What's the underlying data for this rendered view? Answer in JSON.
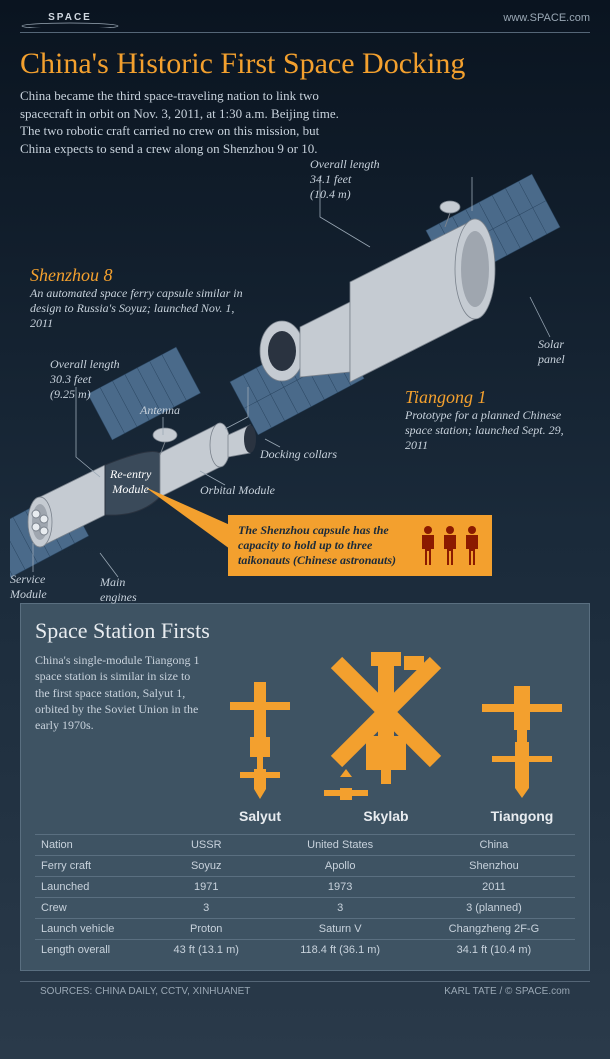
{
  "header": {
    "url": "www.SPACE.com",
    "logo_text": "SPACE"
  },
  "title": "China's Historic First Space Docking",
  "lead": "China became the third space-traveling nation to link two spacecraft in orbit on Nov. 3, 2011, at 1:30 a.m. Beijing time. The two robotic craft carried no crew on this mission, but China expects to send a crew along on Shenzhou 9 or 10.",
  "shenzhou": {
    "name": "Shenzhou 8",
    "desc": "An automated space ferry capsule similar in design to Russia's Soyuz; launched Nov. 1, 2011"
  },
  "tiangong": {
    "name": "Tiangong 1",
    "desc": "Prototype for a planned Chinese space station; launched Sept. 29, 2011"
  },
  "labels": {
    "overall_tg": "Overall length\n34.1 feet\n(10.4 m)",
    "overall_sz": "Overall length\n30.3 feet\n(9.25 m)",
    "antenna": "Antenna",
    "solar_panel": "Solar\npanel",
    "docking": "Docking collars",
    "orbital": "Orbital Module",
    "reentry": "Re-entry\nModule",
    "service": "Service\nModule",
    "engines": "Main\nengines"
  },
  "callout": "The Shenzhou capsule has the capacity to hold up to three taikonauts (Chinese astronauts)",
  "panel": {
    "title": "Space Station Firsts",
    "text": "China's single-module Tiangong 1 space station is similar in size to the first space station, Salyut 1, orbited by the Soviet Union in the early 1970s.",
    "stations": [
      "Salyut",
      "Skylab",
      "Tiangong"
    ],
    "rows": [
      {
        "label": "Nation",
        "vals": [
          "USSR",
          "United States",
          "China"
        ]
      },
      {
        "label": "Ferry craft",
        "vals": [
          "Soyuz",
          "Apollo",
          "Shenzhou"
        ]
      },
      {
        "label": "Launched",
        "vals": [
          "1971",
          "1973",
          "2011"
        ]
      },
      {
        "label": "Crew",
        "vals": [
          "3",
          "3",
          "3 (planned)"
        ]
      },
      {
        "label": "Launch vehicle",
        "vals": [
          "Proton",
          "Saturn V",
          "Changzheng 2F-G"
        ]
      },
      {
        "label": "Length overall",
        "vals": [
          "43 ft (13.1 m)",
          "118.4 ft (36.1 m)",
          "34.1 ft (10.4 m)"
        ]
      }
    ]
  },
  "footer": {
    "sources": "SOURCES: CHINA DAILY, CCTV, XINHUANET",
    "credit": "KARL TATE / © SPACE.com"
  },
  "colors": {
    "accent": "#f3a02e",
    "bg_top": "#0a1420",
    "panel_bg": "#3e5363",
    "text": "#c8d2dc",
    "person": "#8b1a00"
  }
}
